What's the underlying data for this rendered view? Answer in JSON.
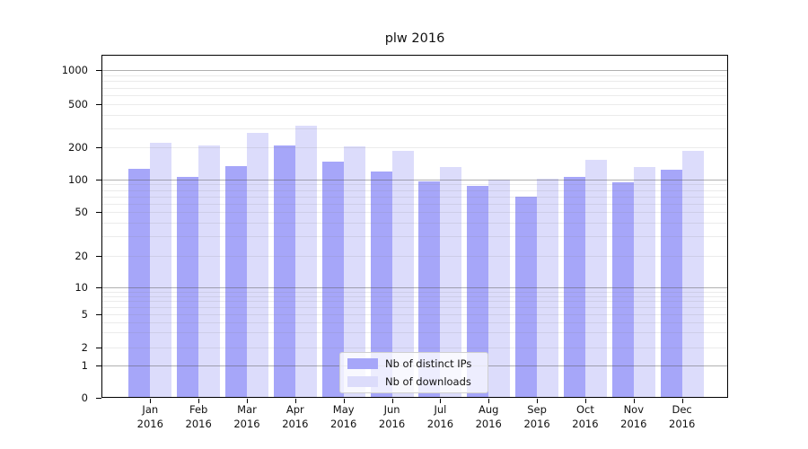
{
  "figure": {
    "title": "plw 2016"
  },
  "chart_data": {
    "type": "bar",
    "title": "plw 2016",
    "year": "2016",
    "categories": [
      "Jan",
      "Feb",
      "Mar",
      "Apr",
      "May",
      "Jun",
      "Jul",
      "Aug",
      "Sep",
      "Oct",
      "Nov",
      "Dec"
    ],
    "series": [
      {
        "name": "Nb of distinct IPs",
        "color": "#a6a6f9",
        "values": [
          126,
          106,
          133,
          208,
          146,
          119,
          96,
          87,
          70,
          106,
          95,
          124
        ]
      },
      {
        "name": "Nb of downloads",
        "color": "#dcdcfb",
        "values": [
          220,
          208,
          270,
          318,
          204,
          185,
          131,
          100,
          101,
          153,
          131,
          185
        ]
      }
    ],
    "yscale": "symlog",
    "yticks": [
      0,
      1,
      2,
      5,
      10,
      20,
      50,
      100,
      200,
      500,
      1000
    ],
    "ylim": [
      0,
      1500
    ],
    "grid": "both",
    "legend_position": "lower center inside plot"
  }
}
